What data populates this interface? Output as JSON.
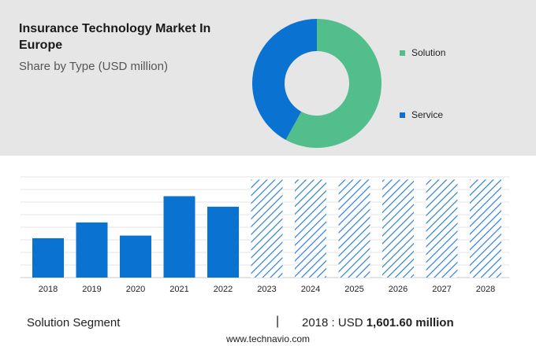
{
  "header": {
    "title": "Insurance Technology Market In Europe",
    "subtitle": "Share by Type (USD million)"
  },
  "colors": {
    "solution": "#52be8c",
    "service": "#0a72d1",
    "bar": "#0a72d1",
    "forecast_hatch": "#2e7fd6",
    "panel_bg": "#e6e6e6"
  },
  "chart_data": [
    {
      "type": "pie",
      "style": "donut",
      "title": "Share by Type (USD million)",
      "categories": [
        "Solution",
        "Service"
      ],
      "values": [
        58,
        42
      ],
      "legend": "right"
    },
    {
      "type": "bar",
      "categories": [
        "2018",
        "2019",
        "2020",
        "2021",
        "2022",
        "2023",
        "2024",
        "2025",
        "2026",
        "2027",
        "2028"
      ],
      "values": [
        45,
        63,
        48,
        93,
        81,
        null,
        null,
        null,
        null,
        null,
        null
      ],
      "forecast_years": [
        "2023",
        "2024",
        "2025",
        "2026",
        "2027",
        "2028"
      ],
      "forecast_level": 112,
      "ylim": [
        0,
        115
      ],
      "grid": true,
      "xlabel": "",
      "ylabel": ""
    }
  ],
  "footer": {
    "segment": "Solution Segment",
    "divider": "|",
    "year_label": "2018 : USD",
    "value": "1,601.60 million",
    "website": "www.technavio.com"
  }
}
